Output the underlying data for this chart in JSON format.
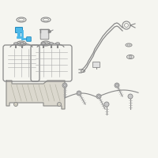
{
  "background_color": "#f5f5f0",
  "fig_size": [
    2.0,
    2.0
  ],
  "dpi": 100,
  "lc": "#aaaaaa",
  "dc": "#888888",
  "hc": "#4db8e8",
  "hd": "#2288bb",
  "part_gray": "#c8c8c8",
  "part_light": "#e0e0e0"
}
